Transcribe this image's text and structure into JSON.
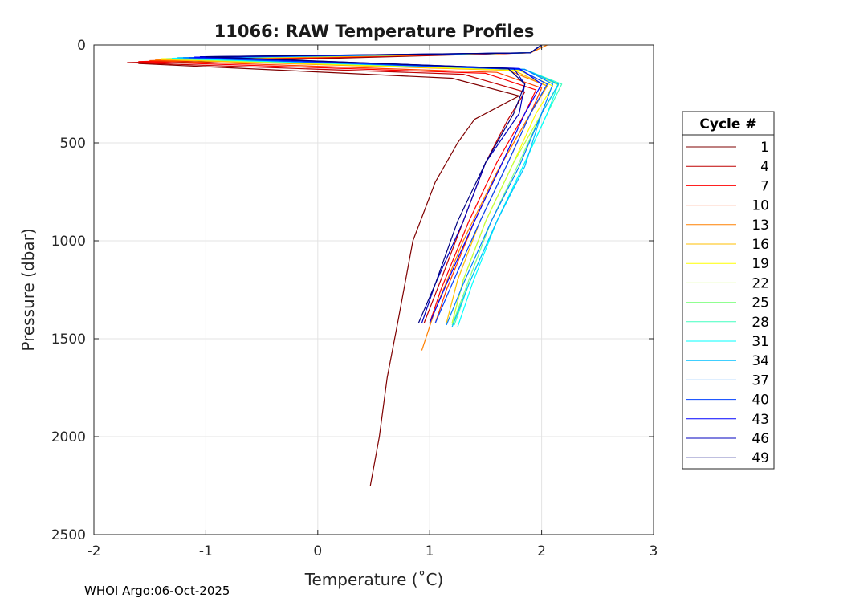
{
  "chart_data": {
    "type": "line",
    "title": "11066: RAW Temperature Profiles",
    "xlabel": "Temperature (˚C)",
    "ylabel": "Pressure (dbar)",
    "xlim": [
      -2,
      3
    ],
    "ylim": [
      0,
      2500
    ],
    "y_reversed": true,
    "grid": true,
    "x_ticks": [
      -2,
      -1,
      0,
      1,
      2,
      3
    ],
    "x_tick_labels": [
      "-2",
      "-1",
      "0",
      "1",
      "2",
      "3"
    ],
    "y_ticks": [
      0,
      500,
      1000,
      1500,
      2000,
      2500
    ],
    "y_tick_labels": [
      "0",
      "500",
      "1000",
      "1500",
      "2000",
      "2500"
    ],
    "legend_title": "Cycle #",
    "legend_position": "outside-right",
    "series": [
      {
        "name": "1",
        "color": "#7f0000",
        "temperature": [
          2.0,
          1.9,
          -1.6,
          1.2,
          1.8,
          1.4,
          1.25,
          1.05,
          0.85,
          0.72,
          0.62,
          0.55,
          0.47
        ],
        "pressure": [
          0,
          40,
          95,
          170,
          260,
          380,
          500,
          700,
          1000,
          1400,
          1700,
          2000,
          2250
        ]
      },
      {
        "name": "4",
        "color": "#bf0000",
        "temperature": [
          2.0,
          1.9,
          -1.7,
          1.3,
          1.85,
          1.7,
          1.5,
          1.3,
          1.1,
          0.95
        ],
        "pressure": [
          0,
          40,
          90,
          150,
          240,
          380,
          600,
          900,
          1200,
          1420
        ]
      },
      {
        "name": "7",
        "color": "#ff0000",
        "temperature": [
          2.0,
          1.9,
          -1.6,
          1.5,
          1.95,
          1.85,
          1.6,
          1.35,
          1.1,
          1.0
        ],
        "pressure": [
          0,
          40,
          85,
          145,
          230,
          350,
          600,
          900,
          1250,
          1420
        ]
      },
      {
        "name": "10",
        "color": "#ff4000",
        "temperature": [
          2.05,
          1.9,
          -1.5,
          1.6,
          2.0,
          1.9,
          1.65,
          1.4,
          1.15,
          1.05
        ],
        "pressure": [
          0,
          40,
          80,
          140,
          220,
          350,
          600,
          900,
          1250,
          1420
        ]
      },
      {
        "name": "13",
        "color": "#ff8000",
        "temperature": [
          2.05,
          1.9,
          -1.45,
          1.7,
          2.05,
          1.9,
          1.6,
          1.3,
          1.05,
          0.93
        ],
        "pressure": [
          0,
          40,
          75,
          130,
          210,
          350,
          650,
          1000,
          1350,
          1560
        ]
      },
      {
        "name": "16",
        "color": "#ffbf00",
        "temperature": [
          2.0,
          1.9,
          -1.4,
          1.75,
          2.05,
          1.9,
          1.7,
          1.45,
          1.25,
          1.15
        ],
        "pressure": [
          0,
          40,
          75,
          130,
          210,
          350,
          600,
          900,
          1200,
          1420
        ]
      },
      {
        "name": "19",
        "color": "#ffff00",
        "temperature": [
          2.0,
          1.9,
          -1.4,
          1.8,
          2.1,
          1.95,
          1.75,
          1.5,
          1.3,
          1.2
        ],
        "pressure": [
          0,
          40,
          70,
          130,
          210,
          350,
          600,
          900,
          1200,
          1420
        ]
      },
      {
        "name": "22",
        "color": "#bfff40",
        "temperature": [
          2.0,
          1.9,
          -1.35,
          1.85,
          2.15,
          2.0,
          1.75,
          1.5,
          1.3,
          1.2
        ],
        "pressure": [
          0,
          40,
          70,
          125,
          205,
          350,
          600,
          900,
          1200,
          1420
        ]
      },
      {
        "name": "25",
        "color": "#80ff80",
        "temperature": [
          2.0,
          1.9,
          -1.35,
          1.85,
          2.15,
          2.0,
          1.8,
          1.55,
          1.35,
          1.2
        ],
        "pressure": [
          0,
          40,
          70,
          125,
          200,
          350,
          600,
          900,
          1200,
          1430
        ]
      },
      {
        "name": "28",
        "color": "#40ffbf",
        "temperature": [
          2.0,
          1.9,
          -1.3,
          1.85,
          2.18,
          2.05,
          1.85,
          1.6,
          1.35,
          1.22
        ],
        "pressure": [
          0,
          40,
          68,
          125,
          200,
          350,
          600,
          900,
          1220,
          1430
        ]
      },
      {
        "name": "31",
        "color": "#00ffff",
        "temperature": [
          2.0,
          1.9,
          -1.3,
          1.85,
          2.15,
          2.05,
          1.85,
          1.6,
          1.38,
          1.25
        ],
        "pressure": [
          0,
          40,
          68,
          125,
          200,
          350,
          600,
          900,
          1220,
          1440
        ]
      },
      {
        "name": "34",
        "color": "#00bfff",
        "temperature": [
          2.0,
          1.9,
          -1.25,
          1.85,
          2.15,
          2.0,
          1.85,
          1.6,
          1.35,
          1.2
        ],
        "pressure": [
          0,
          40,
          65,
          125,
          200,
          350,
          620,
          900,
          1220,
          1440
        ]
      },
      {
        "name": "37",
        "color": "#0080ff",
        "temperature": [
          2.0,
          1.9,
          -1.2,
          1.85,
          2.1,
          2.0,
          1.8,
          1.55,
          1.3,
          1.15
        ],
        "pressure": [
          0,
          40,
          65,
          125,
          200,
          350,
          620,
          900,
          1220,
          1430
        ]
      },
      {
        "name": "40",
        "color": "#0040ff",
        "temperature": [
          2.0,
          1.9,
          -1.15,
          1.8,
          2.05,
          1.9,
          1.7,
          1.45,
          1.2,
          1.05
        ],
        "pressure": [
          0,
          40,
          65,
          125,
          200,
          350,
          600,
          900,
          1220,
          1420
        ]
      },
      {
        "name": "43",
        "color": "#0000ff",
        "temperature": [
          2.0,
          1.9,
          -1.1,
          1.8,
          2.0,
          1.85,
          1.65,
          1.4,
          1.15,
          1.0
        ],
        "pressure": [
          0,
          40,
          62,
          120,
          200,
          350,
          600,
          900,
          1220,
          1420
        ]
      },
      {
        "name": "46",
        "color": "#0000bf",
        "temperature": [
          2.0,
          1.9,
          -1.05,
          1.75,
          1.85,
          1.8,
          1.5,
          1.3,
          1.05,
          0.93
        ],
        "pressure": [
          0,
          40,
          60,
          120,
          200,
          350,
          600,
          900,
          1220,
          1420
        ]
      },
      {
        "name": "49",
        "color": "#000080",
        "temperature": [
          2.0,
          1.9,
          -1.0,
          1.7,
          1.85,
          1.75,
          1.5,
          1.25,
          1.05,
          0.9
        ],
        "pressure": [
          0,
          40,
          60,
          120,
          200,
          350,
          600,
          900,
          1220,
          1420
        ]
      }
    ]
  },
  "footer": "WHOI Argo:06-Oct-2025"
}
